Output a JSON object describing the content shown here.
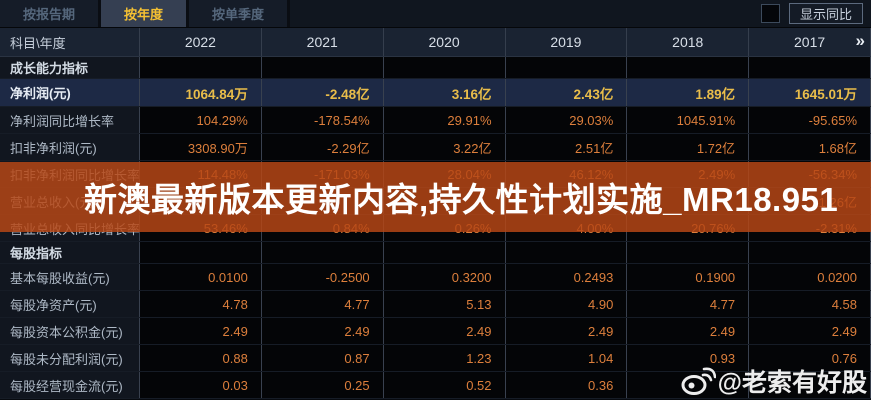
{
  "tabs": [
    {
      "label": "按报告期",
      "active": false
    },
    {
      "label": "按年度",
      "active": true
    },
    {
      "label": "按单季度",
      "active": false
    }
  ],
  "controls": {
    "show_yoy_label": "显示同比",
    "checkbox_checked": false,
    "more_icon": "»"
  },
  "table": {
    "corner_label": "科目\\年度",
    "years": [
      "2022",
      "2021",
      "2020",
      "2019",
      "2018",
      "2017"
    ],
    "rows": [
      {
        "type": "sec",
        "label": "成长能力指标"
      },
      {
        "type": "data",
        "label": "净利润(元)",
        "highlight": true,
        "values": [
          "1064.84万",
          "-2.48亿",
          "3.16亿",
          "2.43亿",
          "1.89亿",
          "1645.01万"
        ]
      },
      {
        "type": "data",
        "label": "净利润同比增长率",
        "values": [
          "104.29%",
          "-178.54%",
          "29.91%",
          "29.03%",
          "1045.91%",
          "-95.65%"
        ]
      },
      {
        "type": "data",
        "label": "扣非净利润(元)",
        "values": [
          "3308.90万",
          "-2.29亿",
          "3.22亿",
          "2.51亿",
          "1.72亿",
          "1.68亿"
        ]
      },
      {
        "type": "data",
        "label": "扣非净利润同比增长率",
        "values": [
          "114.48%",
          "-171.03%",
          "28.04%",
          "46.12%",
          "2.49%",
          "-56.34%"
        ]
      },
      {
        "type": "data",
        "label": "营业总收入(元)",
        "values": [
          "",
          "",
          "",
          "",
          "",
          "21.26亿"
        ]
      },
      {
        "type": "data",
        "label": "营业总收入同比增长率",
        "values": [
          "53.46%",
          "0.84%",
          "0.26%",
          "4.00%",
          "20.76%",
          "-2.31%"
        ]
      },
      {
        "type": "sec",
        "label": "每股指标"
      },
      {
        "type": "data",
        "label": "基本每股收益(元)",
        "values": [
          "0.0100",
          "-0.2500",
          "0.3200",
          "0.2493",
          "0.1900",
          "0.0200"
        ]
      },
      {
        "type": "data",
        "label": "每股净资产(元)",
        "values": [
          "4.78",
          "4.77",
          "5.13",
          "4.90",
          "4.77",
          "4.58"
        ]
      },
      {
        "type": "data",
        "label": "每股资本公积金(元)",
        "values": [
          "2.49",
          "2.49",
          "2.49",
          "2.49",
          "2.49",
          "2.49"
        ]
      },
      {
        "type": "data",
        "label": "每股未分配利润(元)",
        "values": [
          "0.88",
          "0.87",
          "1.23",
          "1.04",
          "0.93",
          "0.76"
        ]
      },
      {
        "type": "data",
        "label": "每股经营现金流(元)",
        "values": [
          "0.03",
          "0.25",
          "0.52",
          "0.36",
          "",
          ""
        ]
      }
    ]
  },
  "watermarks": {
    "banner_text": "新澳最新版本更新内容,持久性计划实施_MR18.951",
    "banner_color": "#b8481c",
    "credit_text": "@老索有好股"
  },
  "colors": {
    "accent_gold": "#f4c033",
    "value_orange": "#dd7f3c",
    "highlight_row": "#1d2945",
    "header_bg": "#1a2332"
  }
}
